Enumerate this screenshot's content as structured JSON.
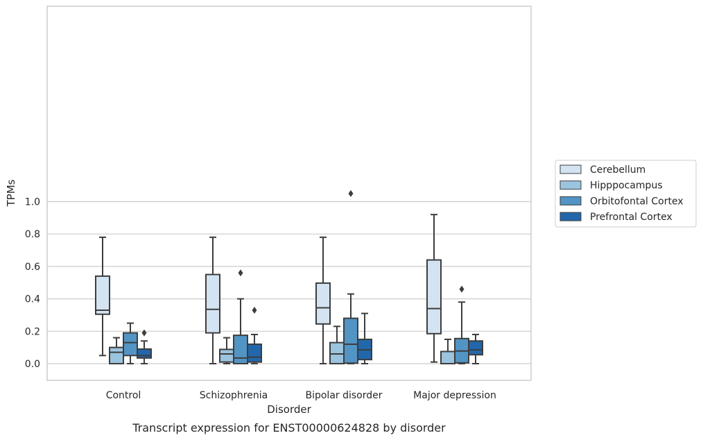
{
  "chart_data": {
    "type": "box",
    "caption": "Transcript expression for ENST00000624828 by disorder",
    "xlabel": "Disorder",
    "ylabel": "TPMs",
    "ylim": [
      -0.05,
      1.1
    ],
    "yticks": [
      0.0,
      0.2,
      0.4,
      0.6,
      0.8,
      1.0
    ],
    "ytick_labels": [
      "0.0",
      "0.2",
      "0.4",
      "0.6",
      "0.8",
      "1.0"
    ],
    "grid": "horizontal",
    "legend_position": "right",
    "categories": [
      "Control",
      "Schizophrenia",
      "Bipolar disorder",
      "Major depression"
    ],
    "series": [
      {
        "name": "Cerebellum",
        "color": "#d3e3f2",
        "boxes": [
          {
            "whislo": 0.05,
            "q1": 0.305,
            "med": 0.33,
            "q3": 0.54,
            "whishi": 0.78,
            "fliers": []
          },
          {
            "whislo": 0.0,
            "q1": 0.19,
            "med": 0.335,
            "q3": 0.55,
            "whishi": 0.78,
            "fliers": []
          },
          {
            "whislo": 0.0,
            "q1": 0.245,
            "med": 0.345,
            "q3": 0.497,
            "whishi": 0.78,
            "fliers": []
          },
          {
            "whislo": 0.01,
            "q1": 0.185,
            "med": 0.34,
            "q3": 0.64,
            "whishi": 0.92,
            "fliers": []
          }
        ]
      },
      {
        "name": "Hipppocampus",
        "color": "#9bc4de",
        "boxes": [
          {
            "whislo": 0.0,
            "q1": 0.0,
            "med": 0.07,
            "q3": 0.1,
            "whishi": 0.16,
            "fliers": []
          },
          {
            "whislo": 0.0,
            "q1": 0.01,
            "med": 0.06,
            "q3": 0.088,
            "whishi": 0.16,
            "fliers": []
          },
          {
            "whislo": 0.0,
            "q1": 0.0,
            "med": 0.06,
            "q3": 0.13,
            "whishi": 0.23,
            "fliers": []
          },
          {
            "whislo": 0.0,
            "q1": 0.0,
            "med": 0.0,
            "q3": 0.075,
            "whishi": 0.15,
            "fliers": []
          }
        ]
      },
      {
        "name": "Orbitofontal Cortex",
        "color": "#5294c4",
        "boxes": [
          {
            "whislo": 0.0,
            "q1": 0.05,
            "med": 0.13,
            "q3": 0.19,
            "whishi": 0.25,
            "fliers": []
          },
          {
            "whislo": 0.0,
            "q1": 0.0,
            "med": 0.035,
            "q3": 0.175,
            "whishi": 0.4,
            "fliers": [
              0.56
            ]
          },
          {
            "whislo": 0.0,
            "q1": 0.003,
            "med": 0.12,
            "q3": 0.28,
            "whishi": 0.43,
            "fliers": [
              1.05
            ]
          },
          {
            "whislo": 0.0,
            "q1": 0.005,
            "med": 0.078,
            "q3": 0.155,
            "whishi": 0.38,
            "fliers": [
              0.46
            ]
          }
        ]
      },
      {
        "name": "Prefrontal Cortex",
        "color": "#2267ab",
        "boxes": [
          {
            "whislo": 0.0,
            "q1": 0.035,
            "med": 0.05,
            "q3": 0.09,
            "whishi": 0.14,
            "fliers": [
              0.19
            ]
          },
          {
            "whislo": 0.0,
            "q1": 0.01,
            "med": 0.04,
            "q3": 0.12,
            "whishi": 0.18,
            "fliers": [
              0.33
            ]
          },
          {
            "whislo": 0.0,
            "q1": 0.025,
            "med": 0.085,
            "q3": 0.15,
            "whishi": 0.31,
            "fliers": []
          },
          {
            "whislo": 0.0,
            "q1": 0.055,
            "med": 0.085,
            "q3": 0.14,
            "whishi": 0.18,
            "fliers": []
          }
        ]
      }
    ]
  }
}
